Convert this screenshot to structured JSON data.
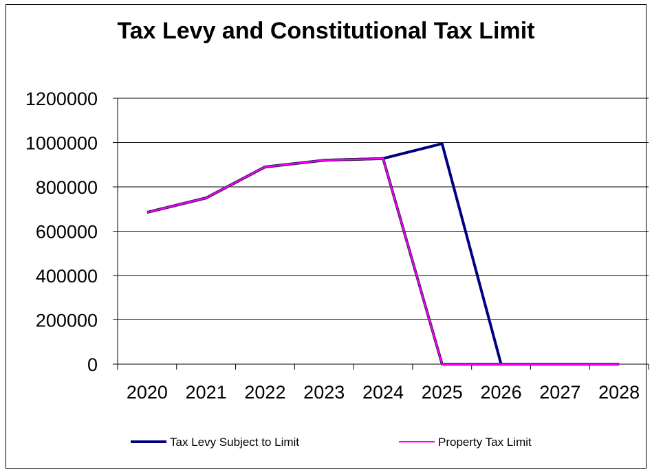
{
  "chart_data": {
    "type": "line",
    "title": "Tax Levy and Constitutional Tax Limit",
    "xlabel": "",
    "ylabel": "",
    "categories": [
      "2020",
      "2021",
      "2022",
      "2023",
      "2024",
      "2025",
      "2026",
      "2027",
      "2028"
    ],
    "ylim": [
      0,
      1200000
    ],
    "yticks": [
      "0",
      "200000",
      "400000",
      "600000",
      "800000",
      "1000000",
      "1200000"
    ],
    "grid": true,
    "legend_position": "bottom",
    "series": [
      {
        "name": "Tax Levy Subject to Limit",
        "color": "#000080",
        "values": [
          685000,
          750000,
          890000,
          920000,
          928000,
          995000,
          0,
          0,
          0
        ]
      },
      {
        "name": "Property Tax Limit",
        "color": "#ff00ff",
        "values": [
          685000,
          750000,
          890000,
          920000,
          928000,
          0,
          0,
          0,
          0
        ]
      }
    ]
  }
}
